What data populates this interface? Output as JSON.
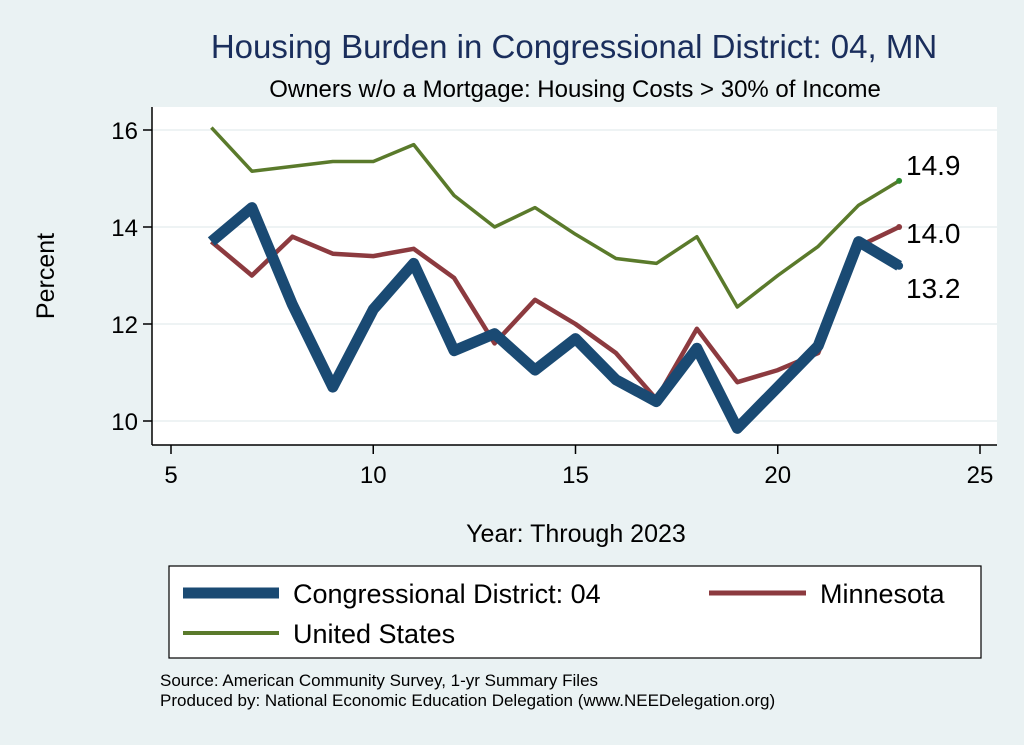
{
  "chart_data": {
    "type": "line",
    "title": "Housing Burden in Congressional District:  04, MN",
    "subtitle": "Owners w/o a Mortgage: Housing Costs > 30% of Income",
    "xlabel": "Year: Through 2023",
    "ylabel": "Percent",
    "xlim": [
      5,
      25
    ],
    "ylim": [
      9.5,
      16.7
    ],
    "x_ticks": [
      5,
      10,
      15,
      20,
      25
    ],
    "y_ticks": [
      10,
      12,
      14,
      16
    ],
    "grid": true,
    "series": [
      {
        "name": "Congressional District:  04",
        "color": "#1a4a73",
        "x": [
          6,
          7,
          8,
          9,
          10,
          11,
          12,
          13,
          14,
          15,
          16,
          17,
          18,
          19,
          20,
          21,
          22,
          23
        ],
        "values": [
          13.7,
          14.4,
          12.4,
          10.7,
          12.3,
          13.25,
          11.45,
          11.8,
          11.05,
          11.7,
          10.85,
          10.4,
          11.5,
          9.85,
          10.7,
          11.55,
          13.7,
          13.2
        ],
        "end_label": "13.2"
      },
      {
        "name": "Minnesota",
        "color": "#8c3a3f",
        "x": [
          6,
          7,
          8,
          9,
          10,
          11,
          12,
          13,
          14,
          15,
          16,
          17,
          18,
          19,
          20,
          21,
          22,
          23
        ],
        "values": [
          13.7,
          13.0,
          13.8,
          13.45,
          13.4,
          13.55,
          12.95,
          11.6,
          12.5,
          12.0,
          11.4,
          10.45,
          11.9,
          10.8,
          11.05,
          11.4,
          13.6,
          14.0
        ],
        "end_label": "14.0"
      },
      {
        "name": "United States",
        "color": "#5a7a2b",
        "x": [
          6,
          7,
          8,
          9,
          10,
          11,
          12,
          13,
          14,
          15,
          16,
          17,
          18,
          19,
          20,
          21,
          22,
          23
        ],
        "values": [
          16.05,
          15.15,
          15.25,
          15.35,
          15.35,
          15.7,
          14.65,
          14.0,
          14.4,
          13.85,
          13.35,
          13.25,
          13.8,
          12.35,
          13.0,
          13.6,
          14.45,
          14.95
        ],
        "end_label": "14.9"
      }
    ],
    "source_lines": [
      "Source: American Community Survey, 1-yr Summary Files",
      "Produced by: National Economic Education Delegation (www.NEEDelegation.org)"
    ]
  }
}
